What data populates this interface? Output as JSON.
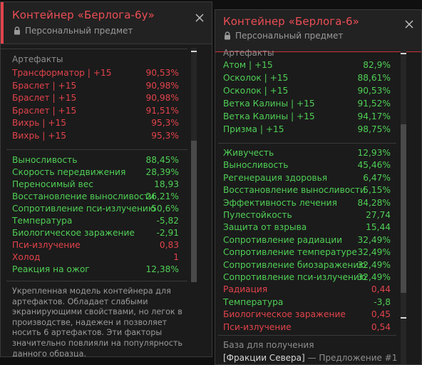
{
  "left_panel": {
    "title": "Контейнер «Берлога-6у»",
    "subtitle": "Персональный предмет",
    "artifacts_title": "Артефакты",
    "artifacts": [
      {
        "label": "Трансформатор | +15",
        "value": "90,53%"
      },
      {
        "label": "Браслет | +15",
        "value": "90,98%"
      },
      {
        "label": "Браслет | +15",
        "value": "90,98%"
      },
      {
        "label": "Браслет | +15",
        "value": "91,51%"
      },
      {
        "label": "Вихрь | +15",
        "value": "95,3%"
      },
      {
        "label": "Вихрь | +15",
        "value": "95,3%"
      }
    ],
    "stats": [
      {
        "label": "Выносливость",
        "value": "88,45%",
        "tone": "good"
      },
      {
        "label": "Скорость передвижения",
        "value": "28,39%",
        "tone": "good"
      },
      {
        "label": "Переносимый вес",
        "value": "18,93",
        "tone": "good"
      },
      {
        "label": "Восстановление выносливости",
        "value": "26,21%",
        "tone": "good"
      },
      {
        "label": "Сопротивление пси-излучению",
        "value": "50,6%",
        "tone": "good"
      },
      {
        "label": "Температура",
        "value": "-5,82",
        "tone": "good"
      },
      {
        "label": "Биологическое заражение",
        "value": "-2,91",
        "tone": "good"
      },
      {
        "label": "Пси-излучение",
        "value": "0,83",
        "tone": "bad"
      },
      {
        "label": "Холод",
        "value": "1",
        "tone": "bad"
      },
      {
        "label": "Реакция на ожог",
        "value": "12,38%",
        "tone": "good"
      }
    ],
    "description": "Укрепленная модель контейнера для артефактов. Обладает слабыми экранирующими свойствами, но легок в производстве, надежен и позволяет носить 6 артефактов. Эти факторы значительно повлияли на популярность данного образца."
  },
  "right_panel": {
    "title": "Контейнер «Берлога-6»",
    "subtitle": "Персональный предмет",
    "artifacts_title": "Артефакты",
    "artifacts": [
      {
        "label": "Атом | +15",
        "value": "82,9%"
      },
      {
        "label": "Осколок | +15",
        "value": "88,61%"
      },
      {
        "label": "Осколок | +15",
        "value": "90,53%"
      },
      {
        "label": "Ветка Калины | +15",
        "value": "91,52%"
      },
      {
        "label": "Ветка Калины | +15",
        "value": "94,17%"
      },
      {
        "label": "Призма | +15",
        "value": "98,75%"
      }
    ],
    "stats": [
      {
        "label": "Живучесть",
        "value": "12,93%",
        "tone": "good"
      },
      {
        "label": "Выносливость",
        "value": "45,46%",
        "tone": "good"
      },
      {
        "label": "Регенерация здоровья",
        "value": "6,47%",
        "tone": "good"
      },
      {
        "label": "Восстановление выносливости",
        "value": "5,15%",
        "tone": "good"
      },
      {
        "label": "Эффективность лечения",
        "value": "84,28%",
        "tone": "good"
      },
      {
        "label": "Пулестойкость",
        "value": "27,74",
        "tone": "good"
      },
      {
        "label": "Защита от взрыва",
        "value": "15,44",
        "tone": "good"
      },
      {
        "label": "Сопротивление радиации",
        "value": "32,49%",
        "tone": "good"
      },
      {
        "label": "Сопротивление температуре",
        "value": "32,49%",
        "tone": "good"
      },
      {
        "label": "Сопротивление биозаражению",
        "value": "32,49%",
        "tone": "good"
      },
      {
        "label": "Сопротивление пси-излучению",
        "value": "32,49%",
        "tone": "good"
      },
      {
        "label": "Радиация",
        "value": "0,44",
        "tone": "bad"
      },
      {
        "label": "Температура",
        "value": "-3,8",
        "tone": "good"
      },
      {
        "label": "Биологическое заражение",
        "value": "0,45",
        "tone": "bad"
      },
      {
        "label": "Пси-излучение",
        "value": "0,54",
        "tone": "bad"
      }
    ],
    "source_title": "База для получения",
    "source_faction": "[Фракции Севера]",
    "source_offer": " — Предложение #1"
  },
  "colors": {
    "accent_red": "#ec4e55",
    "good": "#4fcf55",
    "bad": "#e2434b"
  },
  "icons": {
    "lock": "lock-icon",
    "close": "close-icon"
  }
}
